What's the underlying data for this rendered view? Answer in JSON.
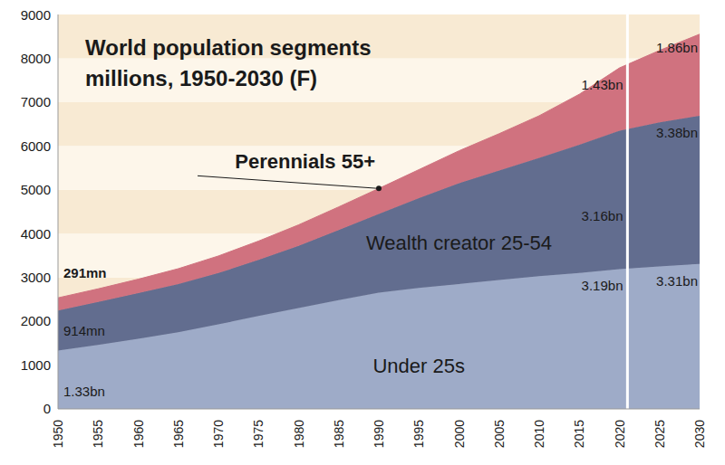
{
  "chart_data": {
    "type": "area",
    "title": "World population segments",
    "subtitle": "millions, 1950-2030 (F)",
    "stacked": true,
    "data_labels": true,
    "x": [
      1950,
      1955,
      1960,
      1965,
      1970,
      1975,
      1980,
      1985,
      1990,
      1995,
      2000,
      2005,
      2010,
      2015,
      2020,
      2025,
      2030
    ],
    "xlim": [
      1950,
      2030
    ],
    "xticks": [
      1950,
      1955,
      1960,
      1965,
      1970,
      1975,
      1980,
      1985,
      1990,
      1995,
      2000,
      2005,
      2010,
      2015,
      2020,
      2025,
      2030
    ],
    "ylim": [
      0,
      9000
    ],
    "yticks": [
      0,
      1000,
      2000,
      3000,
      4000,
      5000,
      6000,
      7000,
      8000,
      9000
    ],
    "reference_line_x": 2021,
    "series": [
      {
        "name": "Under 25s",
        "color": "#9eabc8",
        "values": [
          1330,
          1460,
          1600,
          1750,
          1930,
          2120,
          2300,
          2480,
          2650,
          2760,
          2850,
          2940,
          3030,
          3100,
          3190,
          3250,
          3310
        ],
        "value_labels": [
          "1.33bn",
          null,
          null,
          null,
          null,
          null,
          null,
          null,
          null,
          null,
          null,
          null,
          null,
          null,
          "3.19bn",
          null,
          "3.31bn"
        ]
      },
      {
        "name": "Wealth creator 25-54",
        "color": "#626d8f",
        "values": [
          914,
          980,
          1040,
          1100,
          1170,
          1280,
          1420,
          1600,
          1800,
          2050,
          2300,
          2500,
          2700,
          2930,
          3160,
          3290,
          3380
        ],
        "value_labels": [
          "914mn",
          null,
          null,
          null,
          null,
          null,
          null,
          null,
          null,
          null,
          null,
          null,
          null,
          null,
          "3.16bn",
          null,
          "3.38bn"
        ]
      },
      {
        "name": "Perennials 55+",
        "color": "#d0727f",
        "values": [
          291,
          300,
          320,
          350,
          390,
          430,
          480,
          530,
          580,
          650,
          740,
          840,
          960,
          1150,
          1430,
          1640,
          1860
        ],
        "value_labels": [
          "291mn",
          null,
          null,
          null,
          null,
          null,
          null,
          null,
          null,
          null,
          null,
          null,
          null,
          null,
          "1.43bn",
          null,
          "1.86bn"
        ]
      }
    ]
  }
}
